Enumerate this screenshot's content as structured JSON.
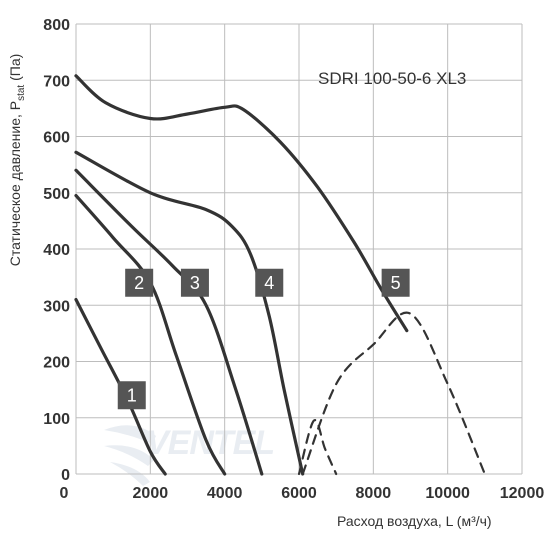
{
  "chart_data": {
    "type": "line",
    "title": "SDRI 100-50-6 XL3",
    "ylabel_main": "Статическое давление, P",
    "ylabel_sub": "stat",
    "ylabel_unit": " (Па)",
    "xlabel": "Расход воздуха, L (м³/ч)",
    "xlim": [
      0,
      12000
    ],
    "ylim": [
      0,
      800
    ],
    "xticks": [
      "0",
      "2000",
      "4000",
      "6000",
      "8000",
      "10000",
      "12000"
    ],
    "yticks": [
      "0",
      "100",
      "200",
      "300",
      "400",
      "500",
      "600",
      "700",
      "800"
    ],
    "grid": true,
    "watermark": "VENTEL",
    "colors": {
      "curve": "#333333",
      "grid": "#bdbdbd",
      "badge": "#555555"
    },
    "series": [
      {
        "name": "1",
        "points": [
          [
            0,
            310
          ],
          [
            700,
            220
          ],
          [
            1400,
            130
          ],
          [
            2000,
            40
          ],
          [
            2400,
            0
          ]
        ],
        "label_at": [
          1500,
          140
        ]
      },
      {
        "name": "2",
        "points": [
          [
            0,
            495
          ],
          [
            1000,
            420
          ],
          [
            2000,
            340
          ],
          [
            2700,
            210
          ],
          [
            3500,
            60
          ],
          [
            4000,
            0
          ]
        ],
        "label_at": [
          1700,
          340
        ]
      },
      {
        "name": "3",
        "points": [
          [
            0,
            540
          ],
          [
            1500,
            440
          ],
          [
            2600,
            370
          ],
          [
            3500,
            300
          ],
          [
            4300,
            150
          ],
          [
            5000,
            0
          ]
        ],
        "label_at": [
          3200,
          340
        ]
      },
      {
        "name": "4",
        "points": [
          [
            0,
            572
          ],
          [
            2000,
            500
          ],
          [
            3500,
            470
          ],
          [
            4200,
            440
          ],
          [
            4700,
            390
          ],
          [
            5200,
            280
          ],
          [
            5600,
            150
          ],
          [
            6100,
            0
          ]
        ],
        "label_at": [
          5200,
          340
        ]
      },
      {
        "name": "5",
        "points": [
          [
            0,
            708
          ],
          [
            800,
            660
          ],
          [
            2000,
            632
          ],
          [
            3000,
            640
          ],
          [
            4000,
            652
          ],
          [
            4500,
            648
          ],
          [
            5500,
            590
          ],
          [
            6500,
            510
          ],
          [
            7500,
            410
          ],
          [
            8200,
            330
          ],
          [
            8900,
            255
          ]
        ],
        "label_at": [
          8600,
          340
        ]
      },
      {
        "name": "system-curve-a",
        "dashed": true,
        "points": [
          [
            6000,
            0
          ],
          [
            6400,
            95
          ],
          [
            6700,
            45
          ],
          [
            7000,
            0
          ]
        ]
      },
      {
        "name": "system-curve-b",
        "dashed": true,
        "points": [
          [
            6100,
            0
          ],
          [
            7000,
            160
          ],
          [
            8000,
            230
          ],
          [
            9000,
            285
          ],
          [
            10000,
            160
          ],
          [
            11000,
            0
          ]
        ]
      }
    ]
  }
}
